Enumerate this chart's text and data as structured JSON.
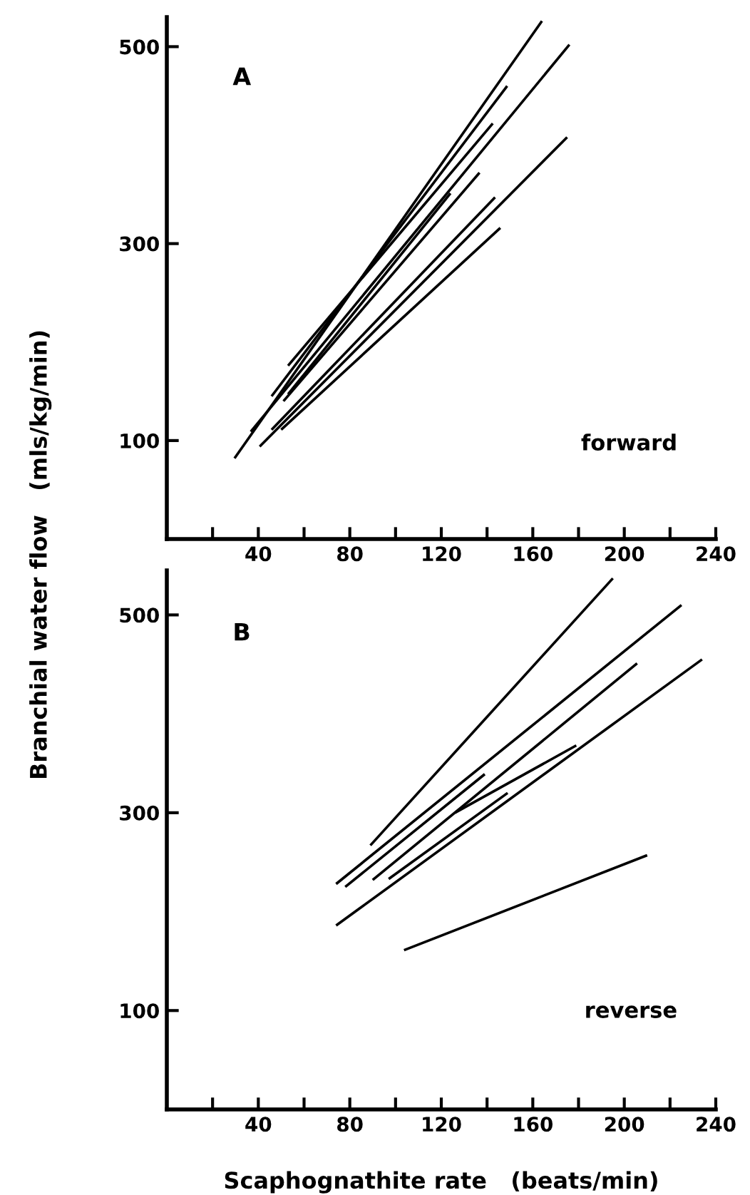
{
  "chart_data": [
    {
      "type": "line",
      "ylabel": "Branchial water flow   (mls/kg/min)",
      "annotations": [
        "A",
        "forward"
      ],
      "xlim": [
        0,
        240
      ],
      "ylim": [
        0,
        530
      ],
      "yticks": [
        100,
        300,
        500
      ],
      "xticks": [
        {
          "value": 20,
          "label": null
        },
        40,
        {
          "value": 60,
          "label": null
        },
        80,
        {
          "value": 100,
          "label": null
        },
        120,
        {
          "value": 140,
          "label": null
        },
        160,
        {
          "value": 180,
          "label": null
        },
        200,
        {
          "value": 220,
          "label": null
        },
        240
      ],
      "grid": false,
      "legend": false,
      "marker": "none",
      "line_style": "solid",
      "series": [
        {
          "color": "#000000",
          "x": [
            29.6,
            164
          ],
          "values": [
            82,
            526
          ]
        },
        {
          "color": "#000000",
          "x": [
            36.7,
            176
          ],
          "values": [
            109,
            502
          ]
        },
        {
          "color": "#000000",
          "x": [
            45.8,
            148.8
          ],
          "values": [
            145,
            460
          ]
        },
        {
          "color": "#000000",
          "x": [
            53,
            142.5
          ],
          "values": [
            176,
            422
          ]
        },
        {
          "color": "#000000",
          "x": [
            51,
            136.7
          ],
          "values": [
            140,
            372
          ]
        },
        {
          "color": "#000000",
          "x": [
            53,
            124
          ],
          "values": [
            147,
            351
          ]
        },
        {
          "color": "#000000",
          "x": [
            40.6,
            175
          ],
          "values": [
            94,
            408
          ]
        },
        {
          "color": "#000000",
          "x": [
            45.8,
            143.5
          ],
          "values": [
            111,
            347
          ]
        },
        {
          "color": "#000000",
          "x": [
            50,
            145.8
          ],
          "values": [
            111,
            316
          ]
        }
      ]
    },
    {
      "type": "line",
      "xlabel": "Scaphognathite rate   (beats/min)",
      "annotations": [
        "B",
        "reverse"
      ],
      "xlim": [
        0,
        240
      ],
      "ylim": [
        0,
        545
      ],
      "yticks": [
        100,
        300,
        500
      ],
      "xticks": [
        {
          "value": 20,
          "label": null
        },
        40,
        {
          "value": 60,
          "label": null
        },
        80,
        {
          "value": 100,
          "label": null
        },
        120,
        {
          "value": 140,
          "label": null
        },
        160,
        {
          "value": 180,
          "label": null
        },
        200,
        {
          "value": 220,
          "label": null
        },
        240
      ],
      "grid": false,
      "legend": false,
      "marker": "none",
      "line_style": "solid",
      "series": [
        {
          "color": "#000000",
          "x": [
            89,
            195
          ],
          "values": [
            267,
            537
          ]
        },
        {
          "color": "#000000",
          "x": [
            74,
            225
          ],
          "values": [
            228,
            510
          ]
        },
        {
          "color": "#000000",
          "x": [
            78,
            139
          ],
          "values": [
            225,
            339
          ]
        },
        {
          "color": "#000000",
          "x": [
            90,
            205.6
          ],
          "values": [
            232,
            451
          ]
        },
        {
          "color": "#000000",
          "x": [
            126,
            179
          ],
          "values": [
            300,
            368
          ]
        },
        {
          "color": "#000000",
          "x": [
            74,
            234
          ],
          "values": [
            186,
            455
          ]
        },
        {
          "color": "#000000",
          "x": [
            97,
            149
          ],
          "values": [
            233,
            320
          ]
        },
        {
          "color": "#000000",
          "x": [
            103.7,
            210
          ],
          "values": [
            161,
            257
          ]
        }
      ]
    }
  ]
}
